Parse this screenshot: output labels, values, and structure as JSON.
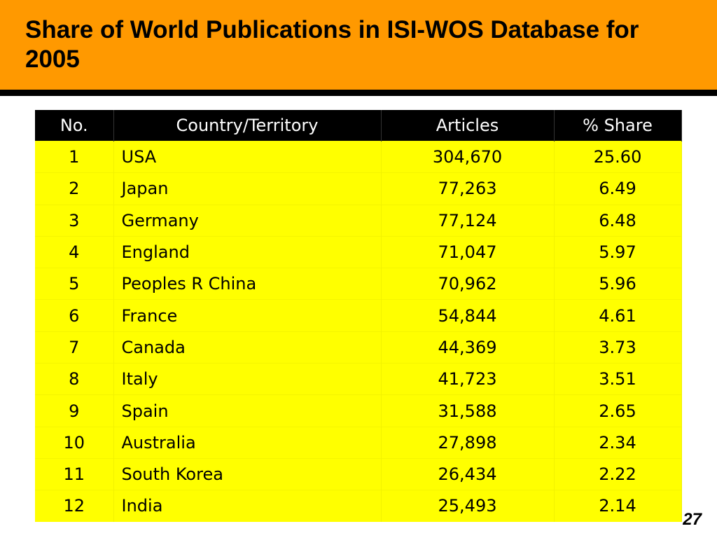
{
  "slide": {
    "title": "Share of World Publications in ISI-WOS Database for 2005",
    "page_number": "27"
  },
  "table": {
    "headers": [
      "No.",
      "Country/Territory",
      "Articles",
      "% Share"
    ],
    "rows": [
      {
        "no": "1",
        "country": "USA",
        "articles": "304,670",
        "share": "25.60"
      },
      {
        "no": "2",
        "country": "Japan",
        "articles": "77,263",
        "share": "6.49"
      },
      {
        "no": "3",
        "country": "Germany",
        "articles": "77,124",
        "share": "6.48"
      },
      {
        "no": "4",
        "country": "England",
        "articles": "71,047",
        "share": "5.97"
      },
      {
        "no": "5",
        "country": "Peoples R China",
        "articles": "70,962",
        "share": "5.96"
      },
      {
        "no": "6",
        "country": "France",
        "articles": "54,844",
        "share": "4.61"
      },
      {
        "no": "7",
        "country": "Canada",
        "articles": "44,369",
        "share": "3.73"
      },
      {
        "no": "8",
        "country": "Italy",
        "articles": "41,723",
        "share": "3.51"
      },
      {
        "no": "9",
        "country": "Spain",
        "articles": "31,588",
        "share": "2.65"
      },
      {
        "no": "10",
        "country": "Australia",
        "articles": "27,898",
        "share": "2.34"
      },
      {
        "no": "11",
        "country": "South Korea",
        "articles": "26,434",
        "share": "2.22"
      },
      {
        "no": "12",
        "country": "India",
        "articles": "25,493",
        "share": "2.14"
      }
    ]
  },
  "colors": {
    "title_band": "#ff9900",
    "rule": "#000000",
    "header_bg": "#000000",
    "cell_bg": "#ffff00"
  }
}
